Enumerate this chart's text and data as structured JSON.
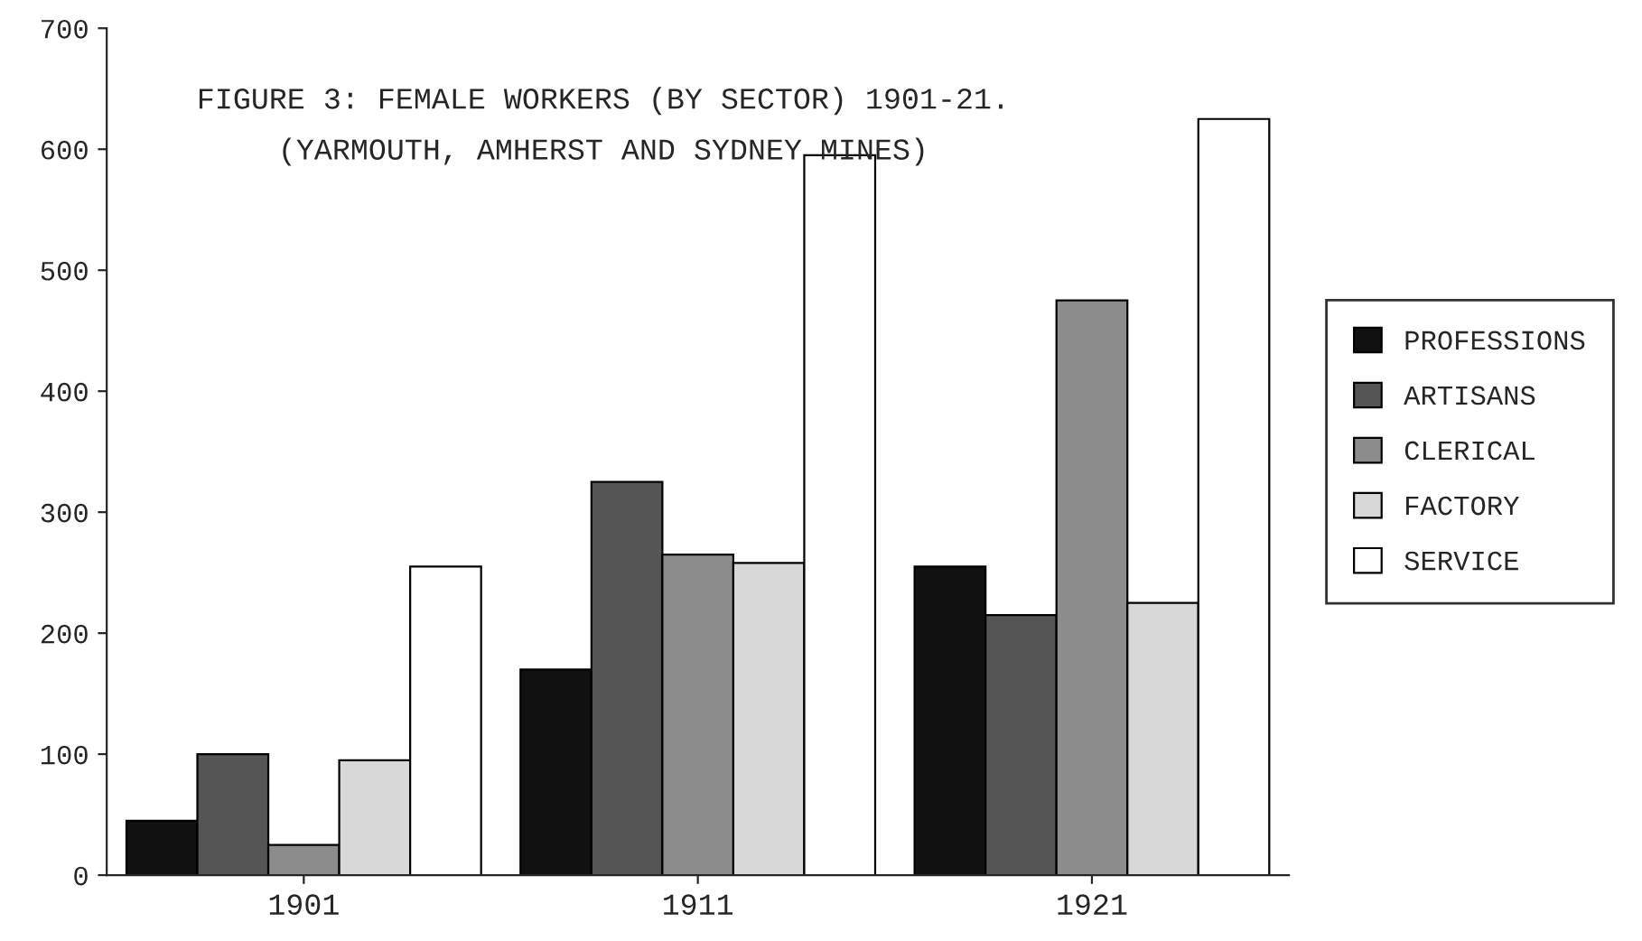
{
  "chart_data": {
    "type": "bar",
    "title": "FIGURE 3: FEMALE WORKERS (BY SECTOR) 1901-21.",
    "subtitle": "(YARMOUTH, AMHERST AND SYDNEY MINES)",
    "categories": [
      "1901",
      "1911",
      "1921"
    ],
    "series": [
      {
        "name": "PROFESSIONS",
        "color": "#111111",
        "values": [
          45,
          170,
          255
        ]
      },
      {
        "name": "ARTISANS",
        "color": "#555555",
        "values": [
          100,
          325,
          215
        ]
      },
      {
        "name": "CLERICAL",
        "color": "#8c8c8c",
        "values": [
          25,
          265,
          475
        ]
      },
      {
        "name": "FACTORY",
        "color": "#d8d8d8",
        "values": [
          95,
          258,
          225
        ]
      },
      {
        "name": "SERVICE",
        "color": "#ffffff",
        "values": [
          255,
          595,
          625
        ]
      }
    ],
    "ylim": [
      0,
      700
    ],
    "yticks": [
      0,
      100,
      200,
      300,
      400,
      500,
      600,
      700
    ],
    "grid": false,
    "legend": "right"
  }
}
